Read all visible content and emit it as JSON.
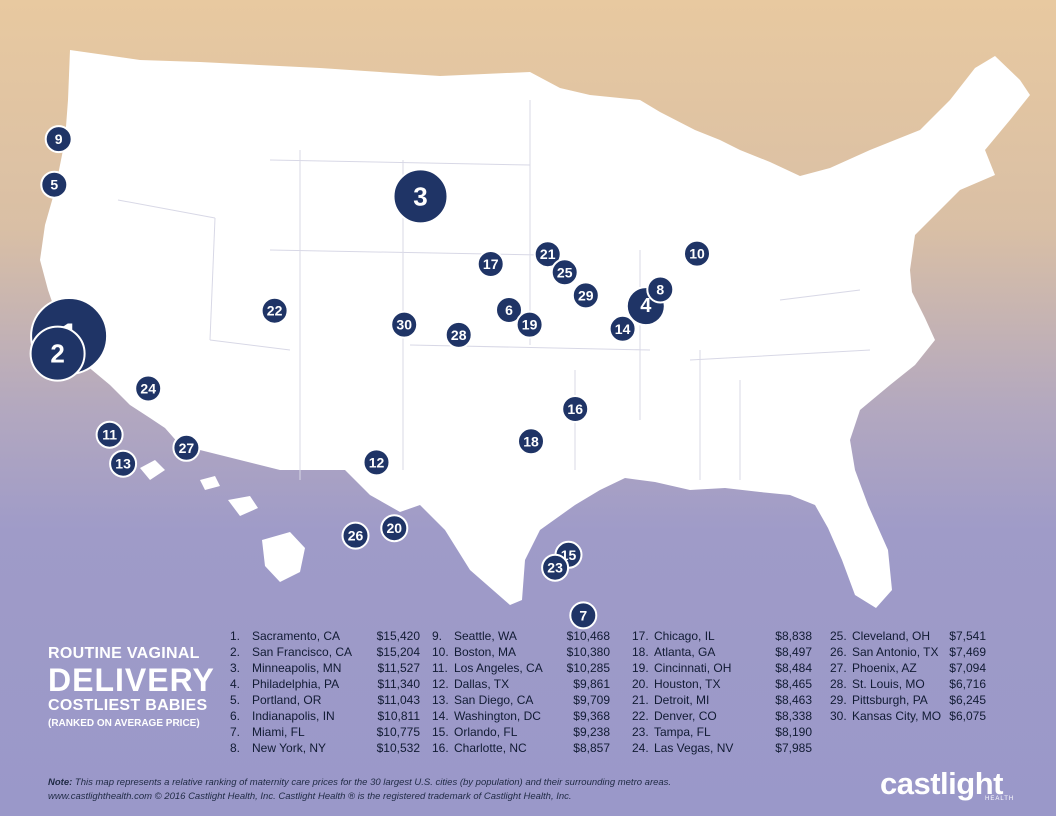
{
  "title": {
    "line1": "ROUTINE VAGINAL",
    "line2": "DELIVERY",
    "line3": "COSTLIEST BABIES",
    "line4": "(RANKED ON AVERAGE PRICE)"
  },
  "colors": {
    "marker_fill": "#1f3466",
    "land": "#ffffff",
    "background_top": "#e8c9a0",
    "background_bottom": "#9a98c9"
  },
  "markers": [
    {
      "rank": "1",
      "lon": -121.49,
      "lat": 38.58,
      "size": 3
    },
    {
      "rank": "2",
      "lon": -122.42,
      "lat": 37.77,
      "size": 2
    },
    {
      "rank": "3",
      "lon": -93.27,
      "lat": 44.98,
      "size": 2
    },
    {
      "rank": "4",
      "lon": -75.17,
      "lat": 39.95,
      "size": 1
    },
    {
      "rank": "5",
      "lon": -122.68,
      "lat": 45.52,
      "size": 0
    },
    {
      "rank": "6",
      "lon": -86.16,
      "lat": 39.77,
      "size": 0
    },
    {
      "rank": "7",
      "lon": -80.19,
      "lat": 25.76,
      "size": 0
    },
    {
      "rank": "8",
      "lon": -74.01,
      "lat": 40.71,
      "size": 0
    },
    {
      "rank": "9",
      "lon": -122.33,
      "lat": 47.61,
      "size": 0
    },
    {
      "rank": "10",
      "lon": -71.06,
      "lat": 42.36,
      "size": 0
    },
    {
      "rank": "11",
      "lon": -118.24,
      "lat": 34.05,
      "size": 0
    },
    {
      "rank": "12",
      "lon": -96.8,
      "lat": 32.78,
      "size": 0
    },
    {
      "rank": "13",
      "lon": -117.16,
      "lat": 32.72,
      "size": 0
    },
    {
      "rank": "14",
      "lon": -77.04,
      "lat": 38.91,
      "size": 0
    },
    {
      "rank": "15",
      "lon": -81.38,
      "lat": 28.54,
      "size": 0
    },
    {
      "rank": "16",
      "lon": -80.84,
      "lat": 35.23,
      "size": 0
    },
    {
      "rank": "17",
      "lon": -87.63,
      "lat": 41.88,
      "size": 0
    },
    {
      "rank": "18",
      "lon": -84.39,
      "lat": 33.75,
      "size": 0
    },
    {
      "rank": "19",
      "lon": -84.51,
      "lat": 39.1,
      "size": 0
    },
    {
      "rank": "20",
      "lon": -95.37,
      "lat": 29.76,
      "size": 0
    },
    {
      "rank": "21",
      "lon": -83.05,
      "lat": 42.33,
      "size": 0
    },
    {
      "rank": "22",
      "lon": -104.99,
      "lat": 39.74,
      "size": 0
    },
    {
      "rank": "23",
      "lon": -82.46,
      "lat": 27.95,
      "size": 0
    },
    {
      "rank": "24",
      "lon": -115.14,
      "lat": 36.17,
      "size": 0
    },
    {
      "rank": "25",
      "lon": -81.69,
      "lat": 41.5,
      "size": 0
    },
    {
      "rank": "26",
      "lon": -98.49,
      "lat": 29.42,
      "size": 0
    },
    {
      "rank": "27",
      "lon": -112.07,
      "lat": 33.45,
      "size": 0
    },
    {
      "rank": "28",
      "lon": -90.2,
      "lat": 38.63,
      "size": 0
    },
    {
      "rank": "29",
      "lon": -79.99,
      "lat": 40.44,
      "size": 0
    },
    {
      "rank": "30",
      "lon": -94.58,
      "lat": 39.1,
      "size": 0
    }
  ],
  "rankings": [
    [
      {
        "num": "1.",
        "city": "Sacramento, CA",
        "price": "$15,420"
      },
      {
        "num": "2.",
        "city": "San Francisco, CA",
        "price": "$15,204"
      },
      {
        "num": "3.",
        "city": "Minneapolis, MN",
        "price": "$11,527"
      },
      {
        "num": "4.",
        "city": "Philadelphia, PA",
        "price": "$11,340"
      },
      {
        "num": "5.",
        "city": "Portland, OR",
        "price": "$11,043"
      },
      {
        "num": "6.",
        "city": "Indianapolis, IN",
        "price": "$10,811"
      },
      {
        "num": "7.",
        "city": "Miami, FL",
        "price": "$10,775"
      },
      {
        "num": "8.",
        "city": "New York, NY",
        "price": "$10,532"
      }
    ],
    [
      {
        "num": "9.",
        "city": "Seattle, WA",
        "price": "$10,468"
      },
      {
        "num": "10.",
        "city": "Boston, MA",
        "price": "$10,380"
      },
      {
        "num": "11.",
        "city": "Los Angeles, CA",
        "price": "$10,285"
      },
      {
        "num": "12.",
        "city": "Dallas, TX",
        "price": "$9,861"
      },
      {
        "num": "13.",
        "city": "San Diego, CA",
        "price": "$9,709"
      },
      {
        "num": "14.",
        "city": "Washington, DC",
        "price": "$9,368"
      },
      {
        "num": "15.",
        "city": "Orlando, FL",
        "price": "$9,238"
      },
      {
        "num": "16.",
        "city": "Charlotte, NC",
        "price": "$8,857"
      }
    ],
    [
      {
        "num": "17.",
        "city": "Chicago, IL",
        "price": "$8,838"
      },
      {
        "num": "18.",
        "city": "Atlanta, GA",
        "price": "$8,497"
      },
      {
        "num": "19.",
        "city": "Cincinnati, OH",
        "price": "$8,484"
      },
      {
        "num": "20.",
        "city": "Houston, TX",
        "price": "$8,465"
      },
      {
        "num": "21.",
        "city": "Detroit, MI",
        "price": "$8,463"
      },
      {
        "num": "22.",
        "city": "Denver, CO",
        "price": "$8,338"
      },
      {
        "num": "23.",
        "city": "Tampa, FL",
        "price": "$8,190"
      },
      {
        "num": "24.",
        "city": "Las Vegas, NV",
        "price": "$7,985"
      }
    ],
    [
      {
        "num": "25.",
        "city": "Cleveland, OH",
        "price": "$7,541"
      },
      {
        "num": "26.",
        "city": "San Antonio, TX",
        "price": "$7,469"
      },
      {
        "num": "27.",
        "city": "Phoenix, AZ",
        "price": "$7,094"
      },
      {
        "num": "28.",
        "city": "St. Louis, MO",
        "price": "$6,716"
      },
      {
        "num": "29.",
        "city": "Pittsburgh, PA",
        "price": "$6,245"
      },
      {
        "num": "30.",
        "city": "Kansas City, MO",
        "price": "$6,075"
      }
    ]
  ],
  "footer": {
    "note_label": "Note:",
    "note_text": " This map represents a relative ranking of maternity care prices for the 30 largest U.S. cities (by population) and their surrounding metro areas.",
    "copyright": "www.castlighthealth.com © 2016 Castlight Health, Inc. Castlight Health ® is the registered trademark of Castlight Health, Inc."
  },
  "logo": {
    "name": "castlight",
    "sub": "HEALTH"
  }
}
